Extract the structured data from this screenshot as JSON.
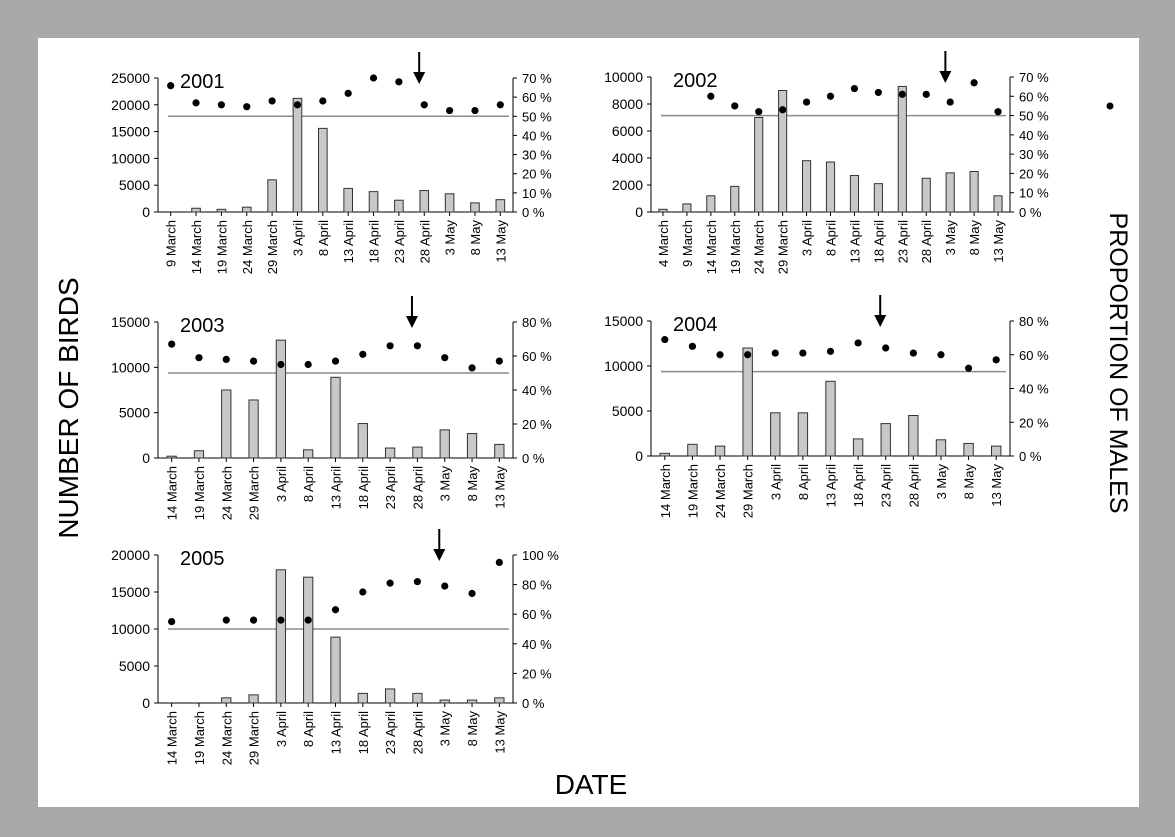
{
  "figure": {
    "y_axis_label": "NUMBER OF BIRDS",
    "right_axis_label": "PROPORTION OF MALES",
    "x_axis_label": "DATE"
  },
  "colors": {
    "background": "#a9a9a9",
    "panel": "#ffffff",
    "bar_fill": "#c8c8c8",
    "bar_stroke": "#333333",
    "reference_line": "#8c8c8c",
    "dot": "#000000"
  },
  "chart_data": [
    {
      "type": "bar",
      "title": "2001",
      "categories": [
        "9 March",
        "14 March",
        "19 March",
        "24 March",
        "29 March",
        "3 April",
        "8 April",
        "13 April",
        "18 April",
        "23 April",
        "28 April",
        "3 May",
        "8 May",
        "13 May"
      ],
      "series": [
        {
          "kind": "bar",
          "axis": "left",
          "values": [
            0,
            700,
            500,
            900,
            6000,
            21200,
            15600,
            4400,
            3800,
            2200,
            4000,
            3400,
            1700,
            2300
          ]
        },
        {
          "kind": "scatter",
          "axis": "right",
          "values": [
            66,
            57,
            56,
            55,
            58,
            56,
            58,
            62,
            70,
            68,
            56,
            53,
            53,
            56
          ]
        }
      ],
      "ylim_left": [
        0,
        25000
      ],
      "left_ticks": [
        "0",
        "5000",
        "10000",
        "15000",
        "20000",
        "25000"
      ],
      "ylim_right": [
        0,
        70
      ],
      "right_ticks": [
        "0 %",
        "10 %",
        "20 %",
        "30 %",
        "40 %",
        "50 %",
        "60 %",
        "70 %"
      ],
      "reference_line_right": 50,
      "arrow_category": "28 April"
    },
    {
      "type": "bar",
      "title": "2002",
      "categories": [
        "4 March",
        "9 March",
        "14 March",
        "19 March",
        "24 March",
        "29 March",
        "3 April",
        "8 April",
        "13 April",
        "18 April",
        "23 April",
        "28 April",
        "3 May",
        "8 May",
        "13 May"
      ],
      "series": [
        {
          "kind": "bar",
          "axis": "left",
          "values": [
            200,
            600,
            1200,
            1900,
            7000,
            9000,
            3800,
            3700,
            2700,
            2100,
            9300,
            2500,
            2900,
            3000,
            1200
          ]
        },
        {
          "kind": "scatter",
          "axis": "right",
          "values": [
            null,
            null,
            60,
            55,
            52,
            53,
            57,
            60,
            64,
            62,
            61,
            61,
            57,
            67,
            52
          ]
        }
      ],
      "ylim_left": [
        0,
        10000
      ],
      "left_ticks": [
        "0",
        "2000",
        "4000",
        "6000",
        "8000",
        "10000"
      ],
      "ylim_right": [
        0,
        70
      ],
      "right_ticks": [
        "0 %",
        "10 %",
        "20 %",
        "30 %",
        "40 %",
        "50 %",
        "60 %",
        "70 %"
      ],
      "reference_line_right": 50,
      "arrow_category": "3 May"
    },
    {
      "type": "bar",
      "title": "2003",
      "categories": [
        "14 March",
        "19 March",
        "24 March",
        "29 March",
        "3 April",
        "8 April",
        "13 April",
        "18 April",
        "23 April",
        "28 April",
        "3 May",
        "8 May",
        "13 May"
      ],
      "series": [
        {
          "kind": "bar",
          "axis": "left",
          "values": [
            200,
            800,
            7500,
            6400,
            13000,
            900,
            8900,
            3800,
            1100,
            1200,
            3100,
            2700,
            1500
          ]
        },
        {
          "kind": "scatter",
          "axis": "right",
          "values": [
            67,
            59,
            58,
            57,
            55,
            55,
            57,
            61,
            66,
            66,
            59,
            53,
            57
          ]
        }
      ],
      "ylim_left": [
        0,
        15000
      ],
      "left_ticks": [
        "0",
        "5000",
        "10000",
        "15000"
      ],
      "ylim_right": [
        0,
        80
      ],
      "right_ticks": [
        "0 %",
        "20 %",
        "40 %",
        "60 %",
        "80 %"
      ],
      "reference_line_right": 50,
      "arrow_category": "28 April"
    },
    {
      "type": "bar",
      "title": "2004",
      "categories": [
        "14 March",
        "19 March",
        "24 March",
        "29 March",
        "3 April",
        "8 April",
        "13 April",
        "18 April",
        "23 April",
        "28 April",
        "3 May",
        "8 May",
        "13 May"
      ],
      "series": [
        {
          "kind": "bar",
          "axis": "left",
          "values": [
            300,
            1300,
            1100,
            12000,
            4800,
            4800,
            8300,
            1900,
            3600,
            4500,
            1800,
            1400,
            1100
          ]
        },
        {
          "kind": "scatter",
          "axis": "right",
          "values": [
            69,
            65,
            60,
            60,
            61,
            61,
            62,
            67,
            64,
            61,
            60,
            52,
            57
          ]
        }
      ],
      "ylim_left": [
        0,
        15000
      ],
      "left_ticks": [
        "0",
        "5000",
        "10000",
        "15000"
      ],
      "ylim_right": [
        0,
        80
      ],
      "right_ticks": [
        "0 %",
        "20 %",
        "40 %",
        "60 %",
        "80 %"
      ],
      "reference_line_right": 50,
      "arrow_category": "23 April"
    },
    {
      "type": "bar",
      "title": "2005",
      "categories": [
        "14 March",
        "19 March",
        "24 March",
        "29 March",
        "3 April",
        "8 April",
        "13 April",
        "18 April",
        "23 April",
        "28 April",
        "3 May",
        "8 May",
        "13 May"
      ],
      "series": [
        {
          "kind": "bar",
          "axis": "left",
          "values": [
            0,
            0,
            700,
            1100,
            18000,
            17000,
            8900,
            1300,
            1900,
            1300,
            400,
            400,
            700
          ]
        },
        {
          "kind": "scatter",
          "axis": "right",
          "values": [
            55,
            null,
            56,
            56,
            56,
            56,
            63,
            75,
            81,
            82,
            79,
            74,
            95
          ]
        }
      ],
      "ylim_left": [
        0,
        20000
      ],
      "left_ticks": [
        "0",
        "5000",
        "10000",
        "15000",
        "20000"
      ],
      "ylim_right": [
        0,
        100
      ],
      "right_ticks": [
        "0 %",
        "20 %",
        "40 %",
        "60 %",
        "80 %",
        "100 %"
      ],
      "reference_line_right": 50,
      "arrow_category": "3 May"
    }
  ]
}
